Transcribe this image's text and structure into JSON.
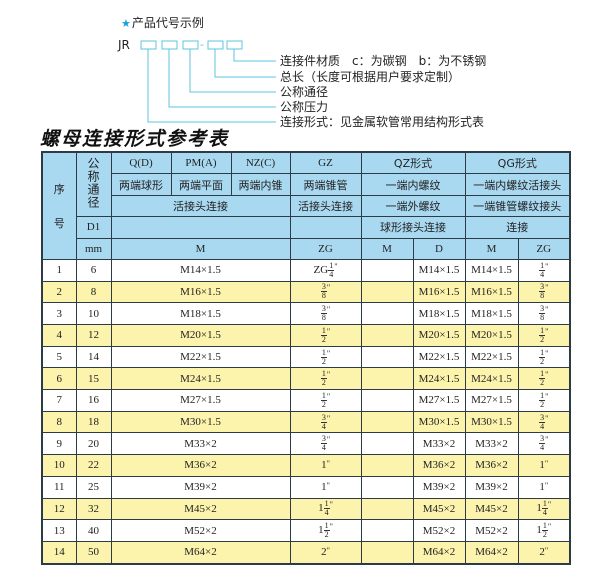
{
  "example": {
    "title": "产品代号示例",
    "star_icon": "star-icon",
    "code_prefix": "JR",
    "code_separator": "-",
    "line_color": "#5cc4dc",
    "labels": [
      "连接件材质　c：为碳钢　b：为不锈钢",
      "总长（长度可根据用户要求定制）",
      "公称通径",
      "公称压力",
      "连接形式：见金属软管常用结构形式表"
    ]
  },
  "table": {
    "title": "螺母连接形式参考表",
    "header": {
      "seq_top": "序",
      "seq_bottom": "号",
      "dn": "公称通径",
      "d1": "D1",
      "mm": "mm",
      "q": "Q(D)",
      "pm": "PM(A)",
      "nz": "NZ(C)",
      "gz": "GZ",
      "qz": "QZ形式",
      "qg": "QG形式",
      "q_desc": "两端球形",
      "pm_desc": "两端平面",
      "nz_desc": "两端内锥",
      "gz_desc": "两端锥管",
      "qz_desc1": "一端内螺纹",
      "qg_desc1": "一端内螺纹活接头",
      "union_desc": "活接头连接",
      "gz_desc2": "活接头连接",
      "qz_desc2": "一端外螺纹",
      "qg_desc2": "一端锥管螺纹接头",
      "qz_desc3": "球形接头连接",
      "qg_desc3": "连接",
      "unit_m": "M",
      "unit_zg": "ZG",
      "qz_m": "M",
      "qz_d": "D",
      "qg_m": "M",
      "qg_zg": "ZG"
    },
    "header_color": "#a9d9f1",
    "stripe_color": "#fcf3ad",
    "rows": [
      {
        "seq": "1",
        "dn": "6",
        "m": "M14×1.5",
        "zg": {
          "pre": "ZG",
          "whole": "",
          "num": "1",
          "den": "4",
          "inch": "\""
        },
        "qz_m": "",
        "qz_d": "M14×1.5",
        "qg_m": "M14×1.5",
        "qg_zg": {
          "pre": "",
          "whole": "",
          "num": "1",
          "den": "4",
          "inch": "\""
        }
      },
      {
        "seq": "2",
        "dn": "8",
        "m": "M16×1.5",
        "zg": {
          "pre": "",
          "whole": "",
          "num": "3",
          "den": "8",
          "inch": "\""
        },
        "qz_m": "",
        "qz_d": "M16×1.5",
        "qg_m": "M16×1.5",
        "qg_zg": {
          "pre": "",
          "whole": "",
          "num": "3",
          "den": "8",
          "inch": "\""
        }
      },
      {
        "seq": "3",
        "dn": "10",
        "m": "M18×1.5",
        "zg": {
          "pre": "",
          "whole": "",
          "num": "3",
          "den": "8",
          "inch": "\""
        },
        "qz_m": "",
        "qz_d": "M18×1.5",
        "qg_m": "M18×1.5",
        "qg_zg": {
          "pre": "",
          "whole": "",
          "num": "3",
          "den": "8",
          "inch": "\""
        }
      },
      {
        "seq": "4",
        "dn": "12",
        "m": "M20×1.5",
        "zg": {
          "pre": "",
          "whole": "",
          "num": "1",
          "den": "2",
          "inch": "\""
        },
        "qz_m": "",
        "qz_d": "M20×1.5",
        "qg_m": "M20×1.5",
        "qg_zg": {
          "pre": "",
          "whole": "",
          "num": "1",
          "den": "2",
          "inch": "\""
        }
      },
      {
        "seq": "5",
        "dn": "14",
        "m": "M22×1.5",
        "zg": {
          "pre": "",
          "whole": "",
          "num": "1",
          "den": "2",
          "inch": "\""
        },
        "qz_m": "",
        "qz_d": "M22×1.5",
        "qg_m": "M22×1.5",
        "qg_zg": {
          "pre": "",
          "whole": "",
          "num": "1",
          "den": "2",
          "inch": "\""
        }
      },
      {
        "seq": "6",
        "dn": "15",
        "m": "M24×1.5",
        "zg": {
          "pre": "",
          "whole": "",
          "num": "1",
          "den": "2",
          "inch": "\""
        },
        "qz_m": "",
        "qz_d": "M24×1.5",
        "qg_m": "M24×1.5",
        "qg_zg": {
          "pre": "",
          "whole": "",
          "num": "1",
          "den": "2",
          "inch": "\""
        }
      },
      {
        "seq": "7",
        "dn": "16",
        "m": "M27×1.5",
        "zg": {
          "pre": "",
          "whole": "",
          "num": "1",
          "den": "2",
          "inch": "\""
        },
        "qz_m": "",
        "qz_d": "M27×1.5",
        "qg_m": "M27×1.5",
        "qg_zg": {
          "pre": "",
          "whole": "",
          "num": "1",
          "den": "2",
          "inch": "\""
        }
      },
      {
        "seq": "8",
        "dn": "18",
        "m": "M30×1.5",
        "zg": {
          "pre": "",
          "whole": "",
          "num": "3",
          "den": "4",
          "inch": "\""
        },
        "qz_m": "",
        "qz_d": "M30×1.5",
        "qg_m": "M30×1.5",
        "qg_zg": {
          "pre": "",
          "whole": "",
          "num": "3",
          "den": "4",
          "inch": "\""
        }
      },
      {
        "seq": "9",
        "dn": "20",
        "m": "M33×2",
        "zg": {
          "pre": "",
          "whole": "",
          "num": "3",
          "den": "4",
          "inch": "\""
        },
        "qz_m": "",
        "qz_d": "M33×2",
        "qg_m": "M33×2",
        "qg_zg": {
          "pre": "",
          "whole": "",
          "num": "3",
          "den": "4",
          "inch": "\""
        }
      },
      {
        "seq": "10",
        "dn": "22",
        "m": "M36×2",
        "zg": {
          "pre": "",
          "whole": "1",
          "num": "",
          "den": "",
          "inch": "\""
        },
        "qz_m": "",
        "qz_d": "M36×2",
        "qg_m": "M36×2",
        "qg_zg": {
          "pre": "",
          "whole": "1",
          "num": "",
          "den": "",
          "inch": "\""
        }
      },
      {
        "seq": "11",
        "dn": "25",
        "m": "M39×2",
        "zg": {
          "pre": "",
          "whole": "1",
          "num": "",
          "den": "",
          "inch": "\""
        },
        "qz_m": "",
        "qz_d": "M39×2",
        "qg_m": "M39×2",
        "qg_zg": {
          "pre": "",
          "whole": "1",
          "num": "",
          "den": "",
          "inch": "\""
        }
      },
      {
        "seq": "12",
        "dn": "32",
        "m": "M45×2",
        "zg": {
          "pre": "",
          "whole": "1",
          "num": "1",
          "den": "4",
          "inch": "\""
        },
        "qz_m": "",
        "qz_d": "M45×2",
        "qg_m": "M45×2",
        "qg_zg": {
          "pre": "",
          "whole": "1",
          "num": "1",
          "den": "4",
          "inch": "\""
        }
      },
      {
        "seq": "13",
        "dn": "40",
        "m": "M52×2",
        "zg": {
          "pre": "",
          "whole": "1",
          "num": "1",
          "den": "2",
          "inch": "\""
        },
        "qz_m": "",
        "qz_d": "M52×2",
        "qg_m": "M52×2",
        "qg_zg": {
          "pre": "",
          "whole": "1",
          "num": "1",
          "den": "2",
          "inch": "\""
        }
      },
      {
        "seq": "14",
        "dn": "50",
        "m": "M64×2",
        "zg": {
          "pre": "",
          "whole": "2",
          "num": "",
          "den": "",
          "inch": "\""
        },
        "qz_m": "",
        "qz_d": "M64×2",
        "qg_m": "M64×2",
        "qg_zg": {
          "pre": "",
          "whole": "2",
          "num": "",
          "den": "",
          "inch": "\""
        }
      }
    ]
  }
}
